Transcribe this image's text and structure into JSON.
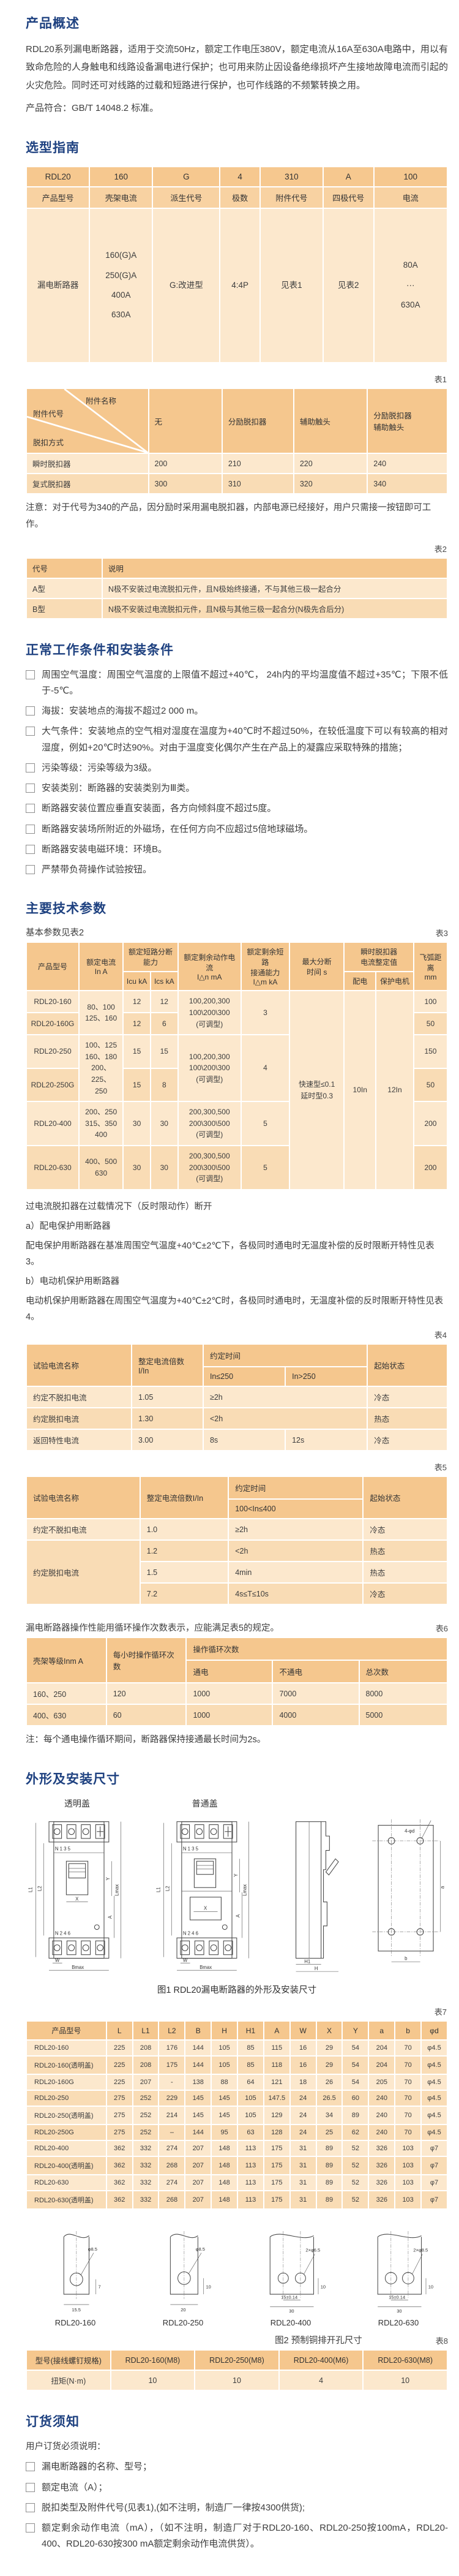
{
  "headings": {
    "overview": "产品概述",
    "selection": "选型指南",
    "conditions": "正常工作条件和安装条件",
    "params": "主要技术参数",
    "dimensions": "外形及安装尺寸",
    "ordering": "订货须知"
  },
  "overview": {
    "p1": "RDL20系列漏电断路器，适用于交流50Hz，额定工作电压380V，额定电流从16A至630A电路中，用以有致命危险的人身触电和线路设备漏电进行保护；也可用来防止因设备绝缘损坏产生接地故障电流而引起的火灾危险。同时还可对线路的过载和短路进行保护，也可作线路的不频繁转换之用。",
    "p2": "产品符合：GB/T 14048.2 标准。"
  },
  "sel": {
    "codes": [
      "RDL20",
      "160",
      "G",
      "4",
      "310",
      "A",
      "100"
    ],
    "labels": [
      "产品型号",
      "壳架电流",
      "派生代号",
      "极数",
      "附件代号",
      "四极代号",
      "电流"
    ],
    "values": [
      "漏电断路器",
      "160(G)A\n250(G)A\n400A\n630A",
      "G:改进型",
      "4:4P",
      "见表1",
      "见表2",
      "80A\n···\n630A"
    ]
  },
  "t1": {
    "label": "表1",
    "corner": {
      "top": "附件名称",
      "left": "附件代号",
      "bottom": "脱扣方式"
    },
    "headers": [
      "无",
      "分励脱扣器",
      "辅助触头",
      "分励脱扣器\n辅助触头"
    ],
    "rows": [
      [
        "瞬时脱扣器",
        "200",
        "210",
        "220",
        "240"
      ],
      [
        "复式脱扣器",
        "300",
        "310",
        "320",
        "340"
      ]
    ],
    "note": "注意：对于代号为340的产品，因分励时采用漏电脱扣器，内部电源已经接好，用户只需接一按钮即可工作。"
  },
  "t2": {
    "label": "表2",
    "headers": [
      "代号",
      "说明"
    ],
    "rows": [
      [
        "A型",
        "N极不安装过电流脱扣元件，且N极始终接通，不与其他三极一起合分"
      ],
      [
        "B型",
        "N极不安装过电流脱扣元件，且N极与其他三极一起合分(N极先合后分)"
      ]
    ]
  },
  "conditions": {
    "items": [
      "周围空气温度：周围空气温度的上限值不超过+40℃， 24h内的平均温度值不超过+35℃；下限不低于-5℃。",
      "海拔：安装地点的海拔不超过2 000 m。",
      "大气条件：安装地点的空气相对湿度在温度为+40℃时不超过50%，在较低温度下可以有较高的相对湿度，例如+20℃时达90%。对由于温度变化偶尔产生在产品上的凝露应采取特殊的措施；",
      "污染等级：污染等级为3级。",
      "安装类别：断路器的安装类别为Ⅲ类。",
      "断路器安装位置应垂直安装面，各方向倾斜度不超过5度。",
      "断路器安装场所附近的外磁场，在任何方向不应超过5倍地球磁场。",
      "断路器安装电磁环境：环境B。",
      "严禁带负荷操作试验按钮。"
    ]
  },
  "t3": {
    "label": "表3",
    "intro": "基本参数见表2",
    "h": {
      "model": "产品型号",
      "in": "额定电流\nIn  A",
      "brk": "额定短路分断能力",
      "icu": "Icu kA",
      "ics": "Ics kA",
      "idn": "额定剩余动作电流\nI△n  mA",
      "idm": "额定剩余短路\n接通能力\nI△m kA",
      "tmax": "最大分断\n时间  s",
      "inst": "瞬时脱扣器\n电流整定值",
      "pd": "配电",
      "motor": "保护电机",
      "arc": "飞弧距离\nmm"
    },
    "r1": [
      "RDL20-160",
      "80、100\n125、160",
      "12",
      "12",
      "100,200,300\n100\\200\\300\n(可调型)",
      "3",
      "快速型≤0.1\n延时型0.3",
      "10In",
      "12In",
      "100"
    ],
    "r2": [
      "RDL20-160G",
      "12",
      "6",
      "50"
    ],
    "r3": [
      "RDL20-250",
      "100、125\n160、180\n200、225、\n250",
      "15",
      "15",
      "100,200,300\n100\\200\\300\n(可调型)",
      "4",
      "150"
    ],
    "r4": [
      "RDL20-250G",
      "15",
      "8",
      "50"
    ],
    "r5": [
      "RDL20-400",
      "200、250\n315、350\n400",
      "30",
      "30",
      "200,300,500\n200\\300\\500\n(可调型)",
      "5",
      "200"
    ],
    "r6": [
      "RDL20-630",
      "400、500\n630",
      "30",
      "30",
      "200,300,500\n200\\300\\500\n(可调型)",
      "5",
      "200"
    ]
  },
  "overload": {
    "title": "过电流脱扣器在过载情况下（反时限动作）断开",
    "a": "a）配电保护用断路器",
    "a_text": "配电保护用断路器在基准周围空气温度+40℃±2℃下，各极同时通电时无温度补偿的反时限断开特性见表3。",
    "b": "b）电动机保护用断路器",
    "b_text": "电动机保护用断路器在周围空气温度为+40℃±2℃时，各极同时通电时，无温度补偿的反时限断开特性见表4。"
  },
  "t4": {
    "label": "表4",
    "h": {
      "name": "试验电流名称",
      "mult": "整定电流倍数\nI/In",
      "time": "约定时间",
      "le": "In≤250",
      "gt": "In>250",
      "state": "起始状态"
    },
    "r1": [
      "约定不脱扣电流",
      "1.05",
      "≥2h",
      "冷态"
    ],
    "r2": [
      "约定脱扣电流",
      "1.30",
      "<2h",
      "热态"
    ],
    "r3": [
      "返回特性电流",
      "3.00",
      "8s",
      "12s",
      "冷态"
    ]
  },
  "t5": {
    "label": "表5",
    "h": {
      "name": "试验电流名称",
      "mult": "整定电流倍数I/In",
      "time": "约定时间",
      "range": "100<In≤400",
      "state": "起始状态"
    },
    "r1": [
      "约定不脱扣电流",
      "1.0",
      "≥2h",
      "冷态"
    ],
    "group": "约定脱扣电流",
    "r2": [
      "1.2",
      "<2h",
      "热态"
    ],
    "r3": [
      "1.5",
      "4min",
      "热态"
    ],
    "r4": [
      "7.2",
      "4s≤T≤10s",
      "冷态"
    ]
  },
  "t6": {
    "label": "表6",
    "intro": "漏电断路器操作性能用循环操作次数表示，应能满足表5的规定。",
    "h": {
      "frame": "壳架等级Inm  A",
      "per_hour": "每小时操作循环次数",
      "cycles": "操作循环次数",
      "on": "通电",
      "off": "不通电",
      "total": "总次数"
    },
    "rows": [
      [
        "160、250",
        "120",
        "1000",
        "7000",
        "8000"
      ],
      [
        "400、630",
        "60",
        "1000",
        "4000",
        "5000"
      ]
    ],
    "note": "注：每个通电操作循环期间，断路器保持接通最长时间为2s。"
  },
  "fig1": {
    "title_left": "透明盖",
    "title_right": "普通盖",
    "top_terminals": "N      1      3      5",
    "bottom_terminals": "N     2     4     6",
    "dims": {
      "L1": "L1",
      "L2": "L2",
      "Lmax": "Lmax",
      "A": "A",
      "X": "X",
      "Y": "Y",
      "W": "W",
      "Bmax": "Bmax",
      "H": "H",
      "H1": "H1",
      "a": "a",
      "b": "b",
      "holes": "4-φd"
    },
    "caption": "图1 RDL20漏电断路器的外形及安装尺寸"
  },
  "t7": {
    "label": "表7",
    "headers": [
      "产品型号",
      "L",
      "L1",
      "L2",
      "B",
      "H",
      "H1",
      "A",
      "W",
      "X",
      "Y",
      "a",
      "b",
      "φd"
    ],
    "rows": [
      [
        "RDL20-160",
        "225",
        "208",
        "176",
        "144",
        "105",
        "85",
        "115",
        "16",
        "29",
        "54",
        "204",
        "70",
        "φ4.5"
      ],
      [
        "RDL20-160(透明盖)",
        "225",
        "208",
        "175",
        "144",
        "105",
        "85",
        "118",
        "16",
        "29",
        "54",
        "204",
        "70",
        "φ4.5"
      ],
      [
        "RDL20-160G",
        "225",
        "207",
        "-",
        "138",
        "88",
        "64",
        "121",
        "18",
        "26",
        "54",
        "205",
        "70",
        "φ4.5"
      ],
      [
        "RDL20-250",
        "275",
        "252",
        "229",
        "145",
        "145",
        "105",
        "147.5",
        "24",
        "26.5",
        "60",
        "240",
        "70",
        "φ4.5"
      ],
      [
        "RDL20-250(透明盖)",
        "275",
        "252",
        "214",
        "145",
        "145",
        "105",
        "129",
        "24",
        "34",
        "89",
        "240",
        "70",
        "φ4.5"
      ],
      [
        "RDL20-250G",
        "275",
        "252",
        "–",
        "144",
        "95",
        "63",
        "128",
        "24",
        "25",
        "62",
        "240",
        "70",
        "φ4.5"
      ],
      [
        "RDL20-400",
        "362",
        "332",
        "274",
        "207",
        "148",
        "113",
        "175",
        "31",
        "89",
        "52",
        "326",
        "103",
        "φ7"
      ],
      [
        "RDL20-400(透明盖)",
        "362",
        "332",
        "268",
        "207",
        "148",
        "113",
        "175",
        "31",
        "89",
        "52",
        "326",
        "103",
        "φ7"
      ],
      [
        "RDL20-630",
        "362",
        "332",
        "274",
        "207",
        "148",
        "113",
        "175",
        "31",
        "89",
        "52",
        "326",
        "103",
        "φ7"
      ],
      [
        "RDL20-630(透明盖)",
        "362",
        "332",
        "268",
        "207",
        "148",
        "113",
        "175",
        "31",
        "89",
        "52",
        "326",
        "103",
        "φ7"
      ]
    ]
  },
  "fig2": {
    "caption": "图2 预制铜排开孔尺寸",
    "items": [
      {
        "name": "RDL20-160",
        "hole": "φ8.5",
        "dv": "7",
        "dw": "15.5"
      },
      {
        "name": "RDL20-250",
        "hole": "φ8.5",
        "dv": "10",
        "dw": "20"
      },
      {
        "name": "RDL20-400",
        "hole": "2×φ6.5",
        "dv": "10",
        "dp": "15±0.14",
        "dw": "30"
      },
      {
        "name": "RDL20-630",
        "hole": "2×φ8.5",
        "dv": "10",
        "dp": "15±0.14",
        "dw": "30"
      }
    ]
  },
  "t8": {
    "label": "表8",
    "headers": [
      "型号(接线螺钉规格)",
      "RDL20-160(M8)",
      "RDL20-250(M8)",
      "RDL20-400(M6)",
      "RDL20-630(M8)"
    ],
    "row": [
      "扭矩(N·m)",
      "10",
      "10",
      "4",
      "10"
    ]
  },
  "ordering": {
    "intro": "用户订货必须说明：",
    "items": [
      "漏电断路器的名称、型号；",
      "额定电流（A）；",
      "脱扣类型及附件代号(见表1),(如不注明，制造厂一律按4300供货);",
      "额定剩余动作电流（mA），（如不注明，制造厂对于RDL20-160、RDL20-250按100mA，RDL20-400、RDL20-630按300 mA额定剩余动作电流供货）。"
    ]
  }
}
